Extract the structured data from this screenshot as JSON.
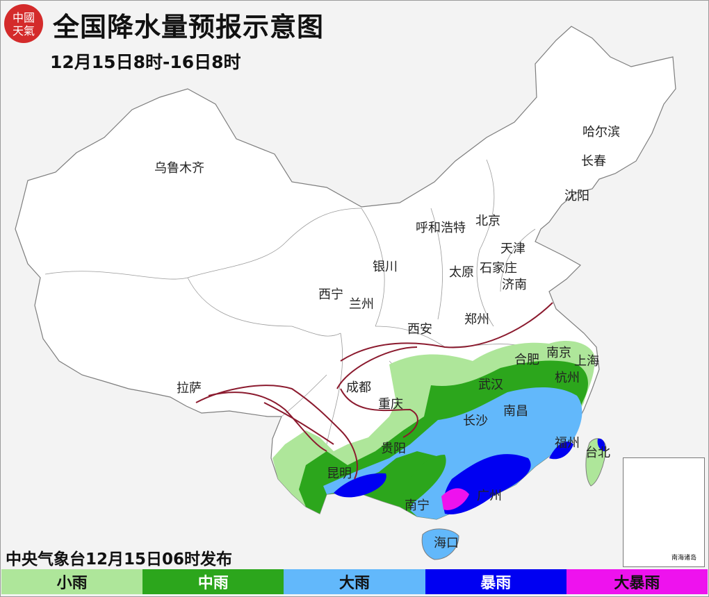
{
  "header": {
    "title": "全国降水量预报示意图",
    "subtitle": "12月15日8时-16日8时",
    "logo_text": "中國天氣"
  },
  "footer": {
    "issuer": "中央气象台12月15日06时发布"
  },
  "legend": [
    {
      "label": "小雨",
      "color": "#aee69a"
    },
    {
      "label": "中雨",
      "color": "#2ca61c"
    },
    {
      "label": "大雨",
      "color": "#62b8fb"
    },
    {
      "label": "暴雨",
      "color": "#0000f2"
    },
    {
      "label": "大暴雨",
      "color": "#ee12ee"
    }
  ],
  "cities": [
    {
      "id": "urumqi",
      "name": "乌鲁木齐"
    },
    {
      "id": "harbin",
      "name": "哈尔滨"
    },
    {
      "id": "changchun",
      "name": "长春"
    },
    {
      "id": "shenyang",
      "name": "沈阳"
    },
    {
      "id": "hohhot",
      "name": "呼和浩特"
    },
    {
      "id": "beijing",
      "name": "北京"
    },
    {
      "id": "tianjin",
      "name": "天津"
    },
    {
      "id": "yinchuan",
      "name": "银川"
    },
    {
      "id": "taiyuan",
      "name": "太原"
    },
    {
      "id": "shijiazhuang",
      "name": "石家庄"
    },
    {
      "id": "jinan",
      "name": "济南"
    },
    {
      "id": "xining",
      "name": "西宁"
    },
    {
      "id": "lanzhou",
      "name": "兰州"
    },
    {
      "id": "zhengzhou",
      "name": "郑州"
    },
    {
      "id": "xian",
      "name": "西安"
    },
    {
      "id": "hefei",
      "name": "合肥"
    },
    {
      "id": "nanjing",
      "name": "南京"
    },
    {
      "id": "shanghai",
      "name": "上海"
    },
    {
      "id": "chengdu",
      "name": "成都"
    },
    {
      "id": "wuhan",
      "name": "武汉"
    },
    {
      "id": "hangzhou",
      "name": "杭州"
    },
    {
      "id": "lhasa",
      "name": "拉萨"
    },
    {
      "id": "chongqing",
      "name": "重庆"
    },
    {
      "id": "changsha",
      "name": "长沙"
    },
    {
      "id": "nanchang",
      "name": "南昌"
    },
    {
      "id": "guiyang",
      "name": "贵阳"
    },
    {
      "id": "fuzhou",
      "name": "福州"
    },
    {
      "id": "taibei",
      "name": "台北"
    },
    {
      "id": "kunming",
      "name": "昆明"
    },
    {
      "id": "guangzhou",
      "name": "广州"
    },
    {
      "id": "nanning",
      "name": "南宁"
    },
    {
      "id": "haikou",
      "name": "海口"
    }
  ],
  "inset": {
    "label": "南海诸岛"
  }
}
